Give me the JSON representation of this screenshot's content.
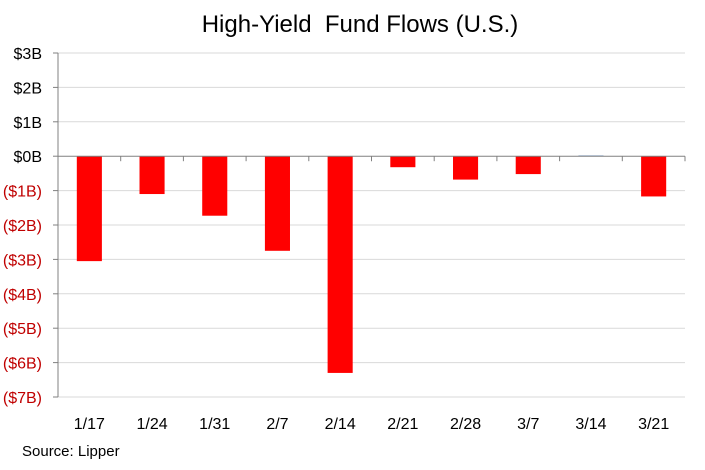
{
  "chart_data": {
    "type": "bar",
    "title": "High-Yield  Fund Flows (U.S.)",
    "categories": [
      "1/17",
      "1/24",
      "1/31",
      "2/7",
      "2/14",
      "2/21",
      "2/28",
      "3/7",
      "3/14",
      "3/21"
    ],
    "values": [
      -3.05,
      -1.1,
      -1.73,
      -2.75,
      -6.3,
      -0.32,
      -0.68,
      -0.52,
      0.02,
      -1.17
    ],
    "ylim": [
      -7,
      3
    ],
    "yticks": [
      {
        "value": 3,
        "label": "$3B"
      },
      {
        "value": 2,
        "label": "$2B"
      },
      {
        "value": 1,
        "label": "$1B"
      },
      {
        "value": 0,
        "label": "$0B"
      },
      {
        "value": -1,
        "label": "($1B)"
      },
      {
        "value": -2,
        "label": "($2B)"
      },
      {
        "value": -3,
        "label": "($3B)"
      },
      {
        "value": -4,
        "label": "($4B)"
      },
      {
        "value": -5,
        "label": "($5B)"
      },
      {
        "value": -6,
        "label": "($6B)"
      },
      {
        "value": -7,
        "label": "($7B)"
      }
    ],
    "xlabel": "",
    "ylabel": "",
    "grid": true,
    "colors": {
      "negative_bar": "#ff0000",
      "positive_bar": "#4f81bd",
      "negative_label": "#c00000",
      "positive_label": "#000000",
      "gridline": "#d9d9d9",
      "axis": "#808080"
    }
  },
  "source": "Source: Lipper"
}
